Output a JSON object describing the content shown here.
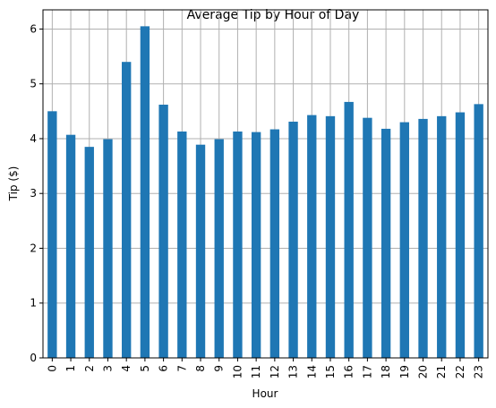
{
  "chart_data": {
    "type": "bar",
    "title": "Average Tip by Hour of Day",
    "xlabel": "Hour",
    "ylabel": "Tip ($)",
    "categories": [
      "0",
      "1",
      "2",
      "3",
      "4",
      "5",
      "6",
      "7",
      "8",
      "9",
      "10",
      "11",
      "12",
      "13",
      "14",
      "15",
      "16",
      "17",
      "18",
      "19",
      "20",
      "21",
      "22",
      "23"
    ],
    "values": [
      4.5,
      4.07,
      3.85,
      3.99,
      5.4,
      6.05,
      4.62,
      4.13,
      3.89,
      3.99,
      4.13,
      4.12,
      4.17,
      4.31,
      4.43,
      4.41,
      4.67,
      4.38,
      4.18,
      4.3,
      4.36,
      4.41,
      4.48,
      4.63
    ],
    "ylim": [
      0,
      6.35
    ],
    "yticks": [
      0,
      1,
      2,
      3,
      4,
      5,
      6
    ],
    "grid": true,
    "legend": "none",
    "bar_color": "#1f77b4"
  }
}
